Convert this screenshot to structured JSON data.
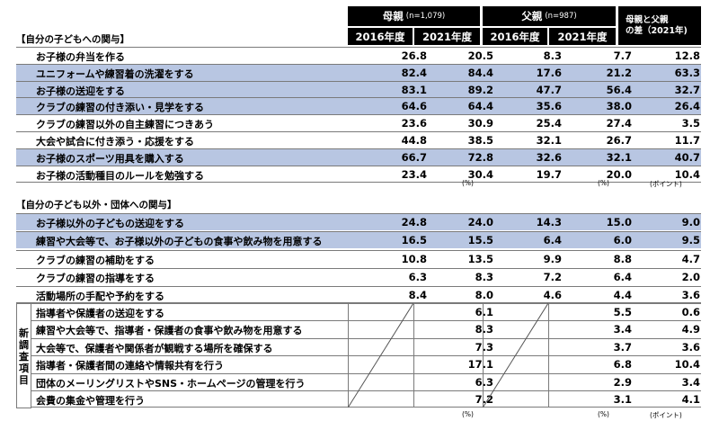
{
  "headers": {
    "mother": "母親",
    "mother_n": "(n=1,079)",
    "father": "父親",
    "father_n": "(n=987)",
    "diff_line1": "母親と父親",
    "diff_line2": "の差（2021年)",
    "year_2016": "2016年度",
    "year_2021": "2021年度"
  },
  "section1": {
    "title": "【自分の子どもへの関与】",
    "rows": [
      {
        "label": "お子様の弁当を作る",
        "m2016": "26.8",
        "m2021": "20.5",
        "f2016": "8.3",
        "f2021": "7.7",
        "diff": "12.8"
      },
      {
        "label": "ユニフォームや練習着の洗濯をする",
        "m2016": "82.4",
        "m2021": "84.4",
        "f2016": "17.6",
        "f2021": "21.2",
        "diff": "63.3"
      },
      {
        "label": "お子様の送迎をする",
        "m2016": "83.1",
        "m2021": "89.2",
        "f2016": "47.7",
        "f2021": "56.4",
        "diff": "32.7"
      },
      {
        "label": "クラブの練習の付き添い・見学をする",
        "m2016": "64.6",
        "m2021": "64.4",
        "f2016": "35.6",
        "f2021": "38.0",
        "diff": "26.4"
      },
      {
        "label": "クラブの練習以外の自主練習につきあう",
        "m2016": "23.6",
        "m2021": "30.9",
        "f2016": "25.4",
        "f2021": "27.4",
        "diff": "3.5"
      },
      {
        "label": "大会や試合に付き添う・応援をする",
        "m2016": "44.8",
        "m2021": "38.5",
        "f2016": "32.1",
        "f2021": "26.7",
        "diff": "11.7"
      },
      {
        "label": "お子様のスポーツ用具を購入する",
        "m2016": "66.7",
        "m2021": "72.8",
        "f2016": "32.6",
        "f2021": "32.1",
        "diff": "40.7"
      },
      {
        "label": "お子様の活動種目のルールを勉強する",
        "m2016": "23.4",
        "m2021": "30.4",
        "f2016": "19.7",
        "f2021": "20.0",
        "diff": "10.4"
      }
    ],
    "unit_pct_mother": "(%)",
    "unit_pct_father": "(%)",
    "unit_point": "(ポイント)"
  },
  "section2": {
    "title": "【自分の子ども以外・団体への関与】",
    "rows": [
      {
        "label": "お子様以外の子どもの送迎をする",
        "m2016": "24.8",
        "m2021": "24.0",
        "f2016": "14.3",
        "f2021": "15.0",
        "diff": "9.0"
      },
      {
        "label": "練習や大会等で、お子様以外の子どもの食事や飲み物を用意する",
        "m2016": "16.5",
        "m2021": "15.5",
        "f2016": "6.4",
        "f2021": "6.0",
        "diff": "9.5"
      },
      {
        "label": "クラブの練習の補助をする",
        "m2016": "10.8",
        "m2021": "13.5",
        "f2016": "9.9",
        "f2021": "8.8",
        "diff": "4.7"
      },
      {
        "label": "クラブの練習の指導をする",
        "m2016": "6.3",
        "m2021": "8.3",
        "f2016": "7.2",
        "f2021": "6.4",
        "diff": "2.0"
      },
      {
        "label": "活動場所の手配や予約をする",
        "m2016": "8.4",
        "m2021": "8.0",
        "f2016": "4.6",
        "f2021": "4.4",
        "diff": "3.6"
      }
    ],
    "new_label": [
      "新",
      "調",
      "査",
      "項",
      "目"
    ],
    "new_rows": [
      {
        "label": "指導者や保護者の送迎をする",
        "m2021": "6.1",
        "f2021": "5.5",
        "diff": "0.6"
      },
      {
        "label": "練習や大会等で、指導者・保護者の食事や飲み物を用意する",
        "m2021": "8.3",
        "f2021": "3.4",
        "diff": "4.9"
      },
      {
        "label": "大会等で、保護者や関係者が観戦する場所を確保する",
        "m2021": "7.3",
        "f2021": "3.7",
        "diff": "3.6"
      },
      {
        "label": "指導者・保護者間の連絡や情報共有を行う",
        "m2021": "17.1",
        "f2021": "6.8",
        "diff": "10.4"
      },
      {
        "label": "団体のメーリングリストやSNS・ホームページの管理を行う",
        "m2021": "6.3",
        "f2021": "2.9",
        "diff": "3.4"
      },
      {
        "label": "会費の集金や管理を行う",
        "m2021": "7.2",
        "f2021": "3.1",
        "diff": "4.1"
      }
    ],
    "unit_pct_mother": "(%)",
    "unit_pct_father": "(%)",
    "unit_point": "(ポイント)"
  },
  "colors": {
    "highlight": "#b8c6e2",
    "header": "#000000"
  }
}
